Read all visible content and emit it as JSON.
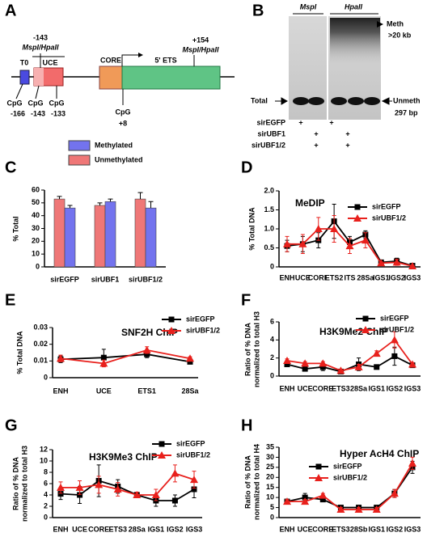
{
  "panel_a": {
    "label": "A",
    "t0": "T0",
    "uce": "UCE",
    "core": "CORE",
    "ets": "5' ETS",
    "site1_pos": "-143",
    "site1_enzyme": "MspI/HpaII",
    "site2_pos": "+154",
    "site2_enzyme": "MspI/HpaII",
    "cpg": [
      "CpG",
      "CpG",
      "CpG",
      "CpG"
    ],
    "cpg_pos": [
      "-166",
      "-143",
      "-133",
      "+8"
    ]
  },
  "panel_b": {
    "label": "B",
    "lane_groups": [
      "MspI",
      "HpaII"
    ],
    "meth": "Meth",
    "meth_size": ">20 kb",
    "total": "Total",
    "unmeth": "Unmeth",
    "unmeth_size": "297 bp",
    "rows": [
      {
        "name": "sirEGFP",
        "signs": [
          "+",
          "+"
        ]
      },
      {
        "name": "sirUBF1",
        "signs": [
          "+",
          "+"
        ]
      },
      {
        "name": "sirUBF1/2",
        "signs": [
          "+",
          "+"
        ]
      }
    ]
  },
  "chart_data": [
    {
      "type": "bar",
      "panel": "C",
      "ylabel": "% Total",
      "categories": [
        "sirEGFP",
        "sirUBF1",
        "sirUBF1/2"
      ],
      "series": [
        {
          "name": "Methylated",
          "color": "#7373ee",
          "values": [
            46,
            51,
            46
          ],
          "errors": [
            2,
            2,
            5
          ]
        },
        {
          "name": "Unmethylated",
          "color": "#ef7777",
          "values": [
            53,
            48,
            53
          ],
          "errors": [
            2,
            2,
            5
          ]
        }
      ],
      "ylim": [
        0,
        60
      ],
      "yticks": [
        0,
        10,
        20,
        30,
        40,
        50,
        60
      ]
    },
    {
      "type": "line",
      "panel": "D",
      "title": "MeDIP",
      "ylabel": "% Total DNA",
      "categories": [
        "ENH",
        "UCE",
        "CORE",
        "ETS2",
        "ITS",
        "28Sa",
        "IGS1",
        "IGS2",
        "IGS3"
      ],
      "series": [
        {
          "name": "sirEGFP",
          "color": "#000000",
          "marker": "square",
          "values": [
            0.55,
            0.6,
            0.7,
            1.2,
            0.65,
            0.85,
            0.12,
            0.15,
            0.03
          ],
          "errors": [
            0.15,
            0.2,
            0.2,
            0.45,
            0.15,
            0.1,
            0.03,
            0.08,
            0.02
          ]
        },
        {
          "name": "sirUBF1/2",
          "color": "#e8201c",
          "marker": "triangle",
          "values": [
            0.6,
            0.6,
            1.0,
            1.0,
            0.55,
            0.7,
            0.1,
            0.12,
            0.02
          ],
          "errors": [
            0.2,
            0.25,
            0.3,
            0.35,
            0.2,
            0.2,
            0.03,
            0.08,
            0.02
          ]
        }
      ],
      "ylim": [
        0,
        2
      ],
      "yticks": [
        0,
        0.5,
        {
          "value": 1,
          "label": "1.0"
        },
        1.5,
        {
          "value": 2,
          "label": "2.0"
        }
      ]
    },
    {
      "type": "line",
      "panel": "E",
      "title": "SNF2H ChIP",
      "ylabel": "% Total DNA",
      "categories": [
        "ENH",
        "UCE",
        "ETS1",
        "28Sa"
      ],
      "series": [
        {
          "name": "sirEGFP",
          "color": "#000000",
          "marker": "square",
          "values": [
            0.011,
            0.012,
            0.014,
            0.0095
          ],
          "errors": [
            0.002,
            0.005,
            0.002,
            0.001
          ]
        },
        {
          "name": "sirUBF1/2",
          "color": "#e8201c",
          "marker": "triangle",
          "values": [
            0.0115,
            0.0085,
            0.0165,
            0.0115
          ],
          "errors": [
            0.002,
            0.002,
            0.002,
            0.001
          ]
        }
      ],
      "ylim": [
        0,
        0.03
      ],
      "yticks": [
        0,
        0.01,
        0.02,
        0.03
      ]
    },
    {
      "type": "line",
      "panel": "F",
      "title": "H3K9Me2 ChIP",
      "ylabel": [
        "Ratio of % DNA",
        "normalized to total H3"
      ],
      "categories": [
        "ENH",
        "UCE",
        "CORE",
        "ETS3",
        "28Sa",
        "IGS1",
        "IGS2",
        "IGS3"
      ],
      "series": [
        {
          "name": "sirEGFP",
          "color": "#000000",
          "marker": "square",
          "values": [
            1.3,
            0.8,
            1.0,
            0.5,
            1.3,
            1.0,
            2.2,
            1.2
          ],
          "errors": [
            0.2,
            0.2,
            0.4,
            0.1,
            0.7,
            0.2,
            1.0,
            0.2
          ]
        },
        {
          "name": "sirUBF1/2",
          "color": "#e8201c",
          "marker": "triangle",
          "values": [
            1.7,
            1.4,
            1.4,
            0.6,
            1.0,
            2.5,
            4.0,
            1.3
          ],
          "errors": [
            0.2,
            0.2,
            0.2,
            0.1,
            0.3,
            0.3,
            0.9,
            0.2
          ]
        }
      ],
      "ylim": [
        0,
        6
      ],
      "yticks": [
        0,
        2,
        4,
        6
      ]
    },
    {
      "type": "line",
      "panel": "G",
      "title": "H3K9Me3 ChIP",
      "ylabel": [
        "Ratio of % DNA",
        "normalized to total H3"
      ],
      "categories": [
        "ENH",
        "UCE",
        "CORE",
        "ETS3",
        "28Sa",
        "IGS1",
        "IGS2",
        "IGS3"
      ],
      "series": [
        {
          "name": "sirEGFP",
          "color": "#000000",
          "marker": "square",
          "values": [
            4.2,
            4.0,
            6.5,
            5.5,
            4.0,
            3.0,
            3.0,
            5.0
          ],
          "errors": [
            1,
            1.5,
            2.8,
            1.2,
            0.5,
            1,
            1,
            1.5
          ]
        },
        {
          "name": "sirUBF1/2",
          "color": "#e8201c",
          "marker": "triangle",
          "values": [
            5.3,
            5.3,
            5.8,
            5.0,
            4.0,
            4.0,
            7.8,
            6.7
          ],
          "errors": [
            1,
            1.2,
            1.5,
            1.2,
            0.5,
            1,
            1.5,
            1.5
          ]
        }
      ],
      "ylim": [
        0,
        12
      ],
      "yticks": [
        0,
        2,
        4,
        6,
        8,
        10,
        12
      ]
    },
    {
      "type": "line",
      "panel": "H",
      "title": "Hyper AcH4 ChIP",
      "ylabel": [
        "Ratio of % DNA",
        "normalized to total H4"
      ],
      "categories": [
        "ENH",
        "UCE",
        "CORE",
        "ETS3",
        "28Sb",
        "IGS1",
        "IGS2",
        "IGS3"
      ],
      "series": [
        {
          "name": "sirEGFP",
          "color": "#000000",
          "marker": "square",
          "values": [
            8,
            10,
            9,
            5,
            5,
            5,
            12,
            25
          ],
          "errors": [
            1,
            2,
            1,
            1,
            1,
            1,
            2,
            3
          ]
        },
        {
          "name": "sirUBF1/2",
          "color": "#e8201c",
          "marker": "triangle",
          "values": [
            8,
            8,
            11,
            4,
            4,
            4,
            12,
            27
          ],
          "errors": [
            1,
            1,
            1,
            1,
            1,
            1,
            2,
            3
          ]
        }
      ],
      "ylim": [
        0,
        35
      ],
      "yticks": [
        0,
        5,
        10,
        15,
        20,
        25,
        30,
        35
      ]
    }
  ]
}
